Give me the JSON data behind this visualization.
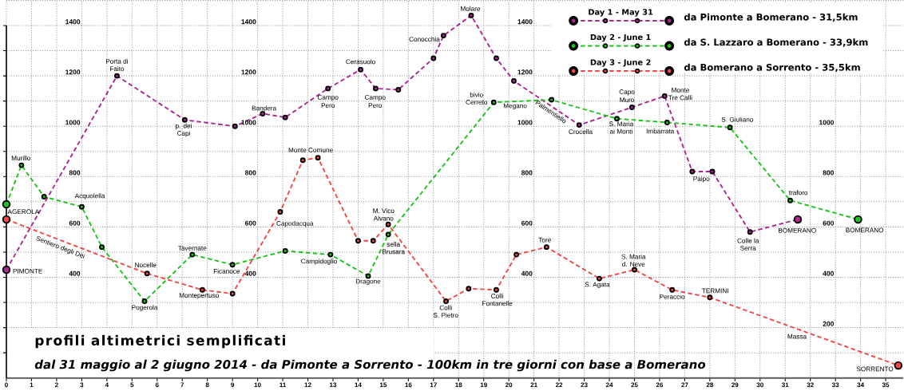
{
  "chart_data": {
    "type": "line",
    "title": "profili altimetrici semplificati",
    "subtitle": "dal 31 maggio al 2 giugno 2014 - da Pimonte a Sorrento - 100km in tre giorni con base a Bomerano",
    "series": [
      {
        "name": "da Pimonte a Bomerano - 31,5km",
        "color": "#a8288f",
        "x": [
          0,
          4.4,
          7.1,
          9.1,
          10.2,
          11.1,
          12.8,
          14.1,
          14.7,
          15.6,
          17.0,
          17.4,
          18.5,
          19.5,
          20.2,
          22.8,
          24.9,
          26.2,
          27.3,
          28.1,
          29.6,
          31.5
        ],
        "values": [
          430,
          1200,
          1025,
          1000,
          1050,
          1035,
          1150,
          1225,
          1150,
          1145,
          1270,
          1360,
          1440,
          1270,
          1180,
          1005,
          1075,
          1120,
          820,
          820,
          580,
          630
        ]
      },
      {
        "name": "da S. Lazzaro a Bomerano - 33,9km",
        "color": "#1ec31e",
        "x": [
          0,
          0.6,
          1.5,
          3.0,
          3.8,
          5.5,
          7.4,
          9.0,
          11.1,
          12.9,
          14.4,
          15.2,
          19.4,
          21.7,
          24.3,
          26.3,
          28.8,
          31.2,
          33.9
        ],
        "values": [
          690,
          845,
          720,
          680,
          520,
          305,
          490,
          450,
          505,
          490,
          405,
          570,
          1095,
          1105,
          1030,
          1015,
          995,
          705,
          630
        ]
      },
      {
        "name": "da Bomerano a Sorrento - 35,5km",
        "color": "#f04848",
        "x": [
          0,
          5.6,
          7.8,
          9.0,
          10.9,
          11.8,
          12.4,
          14.0,
          14.6,
          15.2,
          17.5,
          18.4,
          19.5,
          20.3,
          21.5,
          23.6,
          25.0,
          26.5,
          28.0,
          35.5
        ],
        "values": [
          630,
          415,
          350,
          335,
          660,
          865,
          875,
          545,
          545,
          610,
          305,
          355,
          350,
          490,
          520,
          395,
          430,
          350,
          320,
          50
        ]
      }
    ],
    "xlim": [
      0,
      35.7
    ],
    "xticks": [
      0,
      1,
      2,
      3,
      4,
      5,
      6,
      7,
      8,
      9,
      10,
      11,
      12,
      13,
      14,
      15,
      16,
      17,
      18,
      19,
      20,
      21,
      22,
      23,
      24,
      25,
      26,
      27,
      28,
      29,
      30,
      31,
      32,
      33,
      34,
      35
    ],
    "ylim": [
      0,
      1500
    ],
    "yticks": [
      {
        "value": 100,
        "label": null
      },
      {
        "value": 200,
        "label": null
      },
      {
        "value": 300,
        "label": null
      },
      400,
      {
        "value": 500,
        "label": null
      },
      600,
      {
        "value": 700,
        "label": null
      },
      800,
      {
        "value": 900,
        "label": null
      },
      1000,
      {
        "value": 1100,
        "label": null
      },
      1200,
      {
        "value": 1300,
        "label": null
      },
      1400,
      {
        "value": 1500,
        "label": null
      }
    ],
    "grid": true,
    "legend": "top right",
    "marker": "circle",
    "line_style": "dashed",
    "annotations": [
      {
        "text": "PIMONTE",
        "x": 0,
        "y": 430
      },
      {
        "text": "Porta di",
        "x": 4.4,
        "y": 1200
      },
      {
        "text": "Faito",
        "x": 4.4,
        "y": 1200
      },
      {
        "text": "p. dei",
        "x": 7.1,
        "y": 1025
      },
      {
        "text": "Capi",
        "x": 7.1,
        "y": 1025
      },
      {
        "text": "Bandera",
        "x": 10.2,
        "y": 1050
      },
      {
        "text": "Campo",
        "x": 12.8,
        "y": 1150
      },
      {
        "text": "Pero",
        "x": 12.8,
        "y": 1150
      },
      {
        "text": "Cerasuolo",
        "x": 14.1,
        "y": 1225
      },
      {
        "text": "Campo",
        "x": 14.7,
        "y": 1150
      },
      {
        "text": "Pero",
        "x": 14.7,
        "y": 1150
      },
      {
        "text": "Conocchia",
        "x": 17.4,
        "y": 1360
      },
      {
        "text": "Molare",
        "x": 18.5,
        "y": 1440
      },
      {
        "text": "Palmentiello",
        "x": 21.7,
        "y": 1080
      },
      {
        "text": "Crocella",
        "x": 22.8,
        "y": 1005
      },
      {
        "text": "Capo",
        "x": 24.9,
        "y": 1075
      },
      {
        "text": "Muro",
        "x": 24.9,
        "y": 1075
      },
      {
        "text": "Monte",
        "x": 26.2,
        "y": 1120
      },
      {
        "text": "Tre Calli",
        "x": 26.2,
        "y": 1120
      },
      {
        "text": "Paipo",
        "x": 27.3,
        "y": 820
      },
      {
        "text": "Colle la",
        "x": 29.6,
        "y": 580
      },
      {
        "text": "Serra",
        "x": 29.6,
        "y": 580
      },
      {
        "text": "BOMERANO",
        "x": 31.5,
        "y": 630
      },
      {
        "text": "AGEROLA",
        "x": 0,
        "y": 690
      },
      {
        "text": "Murillo",
        "x": 0.6,
        "y": 845
      },
      {
        "text": "Acquolella",
        "x": 3.0,
        "y": 680
      },
      {
        "text": "Pogerola",
        "x": 5.5,
        "y": 305
      },
      {
        "text": "Tavernate",
        "x": 7.4,
        "y": 490
      },
      {
        "text": "Ficanoce",
        "x": 9.0,
        "y": 450
      },
      {
        "text": "Campidoglio",
        "x": 12.9,
        "y": 490
      },
      {
        "text": "Dragone",
        "x": 14.4,
        "y": 405
      },
      {
        "text": "sella",
        "x": 15.2,
        "y": 570
      },
      {
        "text": "Brusara",
        "x": 15.2,
        "y": 570
      },
      {
        "text": "bivio",
        "x": 19.4,
        "y": 1095
      },
      {
        "text": "Cerreto",
        "x": 19.4,
        "y": 1095
      },
      {
        "text": "Megano",
        "x": 19.4,
        "y": 1095
      },
      {
        "text": "S. Maria",
        "x": 24.3,
        "y": 1030
      },
      {
        "text": "ai Monti",
        "x": 24.3,
        "y": 1030
      },
      {
        "text": "Imbarrata",
        "x": 26.3,
        "y": 1015
      },
      {
        "text": "S. Giuliano",
        "x": 28.8,
        "y": 995
      },
      {
        "text": "traforo",
        "x": 31.2,
        "y": 705
      },
      {
        "text": "BOMERANO",
        "x": 33.9,
        "y": 630
      },
      {
        "text": "Sentiero degli Dei",
        "x": 2.2,
        "y": 545
      },
      {
        "text": "Nocelle",
        "x": 5.6,
        "y": 415
      },
      {
        "text": "Montepertuso",
        "x": 7.8,
        "y": 350
      },
      {
        "text": "Capodacqua",
        "x": 10.9,
        "y": 660
      },
      {
        "text": "Monte Comune",
        "x": 11.8,
        "y": 865
      },
      {
        "text": "M. Vico",
        "x": 15.2,
        "y": 610
      },
      {
        "text": "Alvano",
        "x": 15.2,
        "y": 610
      },
      {
        "text": "Colli",
        "x": 17.5,
        "y": 305
      },
      {
        "text": "S. Pietro",
        "x": 17.5,
        "y": 305
      },
      {
        "text": "Colli",
        "x": 19.5,
        "y": 350
      },
      {
        "text": "Fontanelle",
        "x": 19.5,
        "y": 350
      },
      {
        "text": "Tore",
        "x": 21.5,
        "y": 520
      },
      {
        "text": "S. Agata",
        "x": 23.6,
        "y": 395
      },
      {
        "text": "S. Maria",
        "x": 25.0,
        "y": 430
      },
      {
        "text": "d. Neve",
        "x": 25.0,
        "y": 430
      },
      {
        "text": "Peraccio",
        "x": 26.5,
        "y": 350
      },
      {
        "text": "TERMINI",
        "x": 28.0,
        "y": 320
      },
      {
        "text": "Massa",
        "x": 31.4,
        "y": 200
      },
      {
        "text": "SORRENTO",
        "x": 35.5,
        "y": 50
      },
      "Day 1 - May 31",
      "Day 2 - June 1",
      "Day 3 - June 2",
      "1400",
      "1200",
      "1000",
      "800",
      "600",
      "400",
      "1400",
      "1200",
      "1000",
      "800",
      "600",
      "400",
      "1000",
      "800",
      "600",
      "400",
      "200"
    ]
  }
}
